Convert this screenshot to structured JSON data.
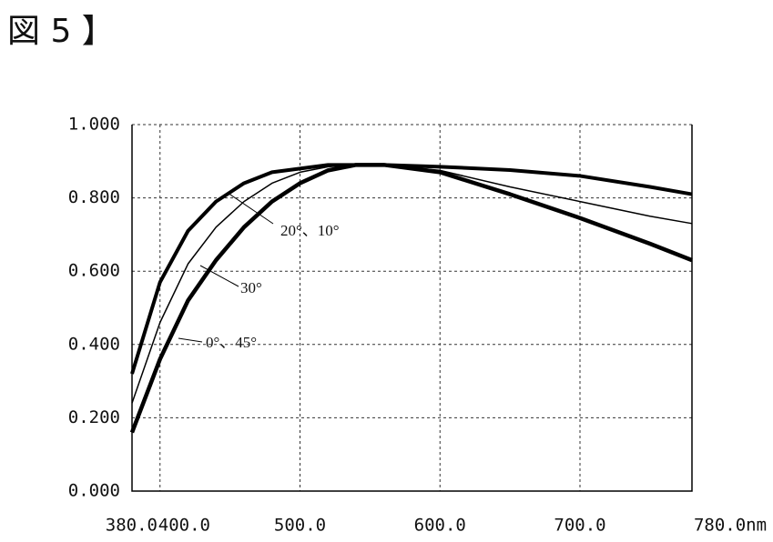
{
  "chart_data": {
    "type": "line",
    "title": "図 5 】",
    "x": [
      380,
      400,
      420,
      440,
      460,
      480,
      500,
      520,
      540,
      560,
      600,
      650,
      700,
      750,
      780
    ],
    "series": [
      {
        "name": "20°、10°",
        "color": "#000000",
        "width": 4,
        "values": [
          0.32,
          0.57,
          0.71,
          0.79,
          0.84,
          0.87,
          0.88,
          0.89,
          0.89,
          0.89,
          0.885,
          0.876,
          0.86,
          0.83,
          0.81
        ]
      },
      {
        "name": "30°",
        "color": "#000000",
        "width": 1.5,
        "values": [
          0.24,
          0.46,
          0.62,
          0.72,
          0.79,
          0.84,
          0.87,
          0.885,
          0.89,
          0.89,
          0.875,
          0.83,
          0.79,
          0.75,
          0.73
        ]
      },
      {
        "name": "0°、45°",
        "color": "#000000",
        "width": 4.5,
        "values": [
          0.16,
          0.36,
          0.52,
          0.63,
          0.72,
          0.79,
          0.84,
          0.875,
          0.89,
          0.89,
          0.87,
          0.81,
          0.745,
          0.675,
          0.63
        ]
      }
    ],
    "xlim": [
      380,
      780
    ],
    "xticks": [
      {
        "value": 380,
        "label": "380.0"
      },
      {
        "value": 400,
        "label": "400.0"
      },
      {
        "value": 500,
        "label": "500.0"
      },
      {
        "value": 600,
        "label": "600.0"
      },
      {
        "value": 700,
        "label": "700.0"
      },
      {
        "value": 780,
        "label": "780.0nm"
      }
    ],
    "ylim": [
      0,
      1
    ],
    "yticks": [
      {
        "value": 0,
        "label": "0.000"
      },
      {
        "value": 0.2,
        "label": "0.200"
      },
      {
        "value": 0.4,
        "label": "0.400"
      },
      {
        "value": 0.6,
        "label": "0.600"
      },
      {
        "value": 0.8,
        "label": "0.800"
      },
      {
        "value": 1,
        "label": "1.000"
      }
    ],
    "grid": true
  }
}
